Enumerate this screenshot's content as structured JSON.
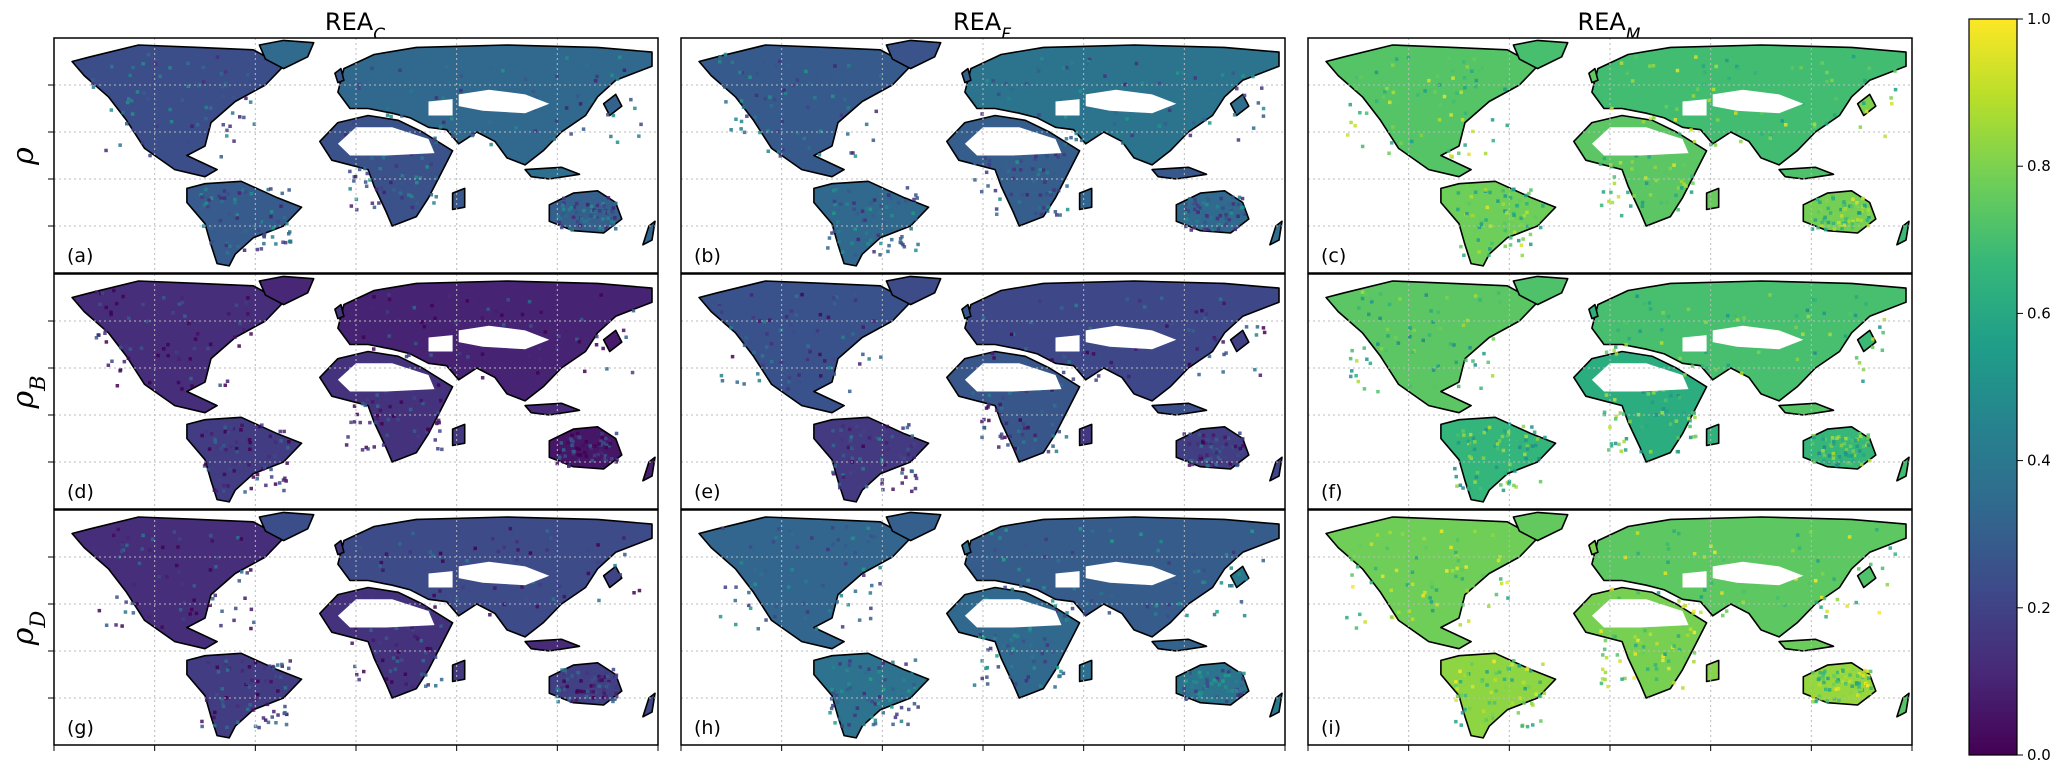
{
  "chart_data": {
    "type": "heatmap",
    "title": "",
    "columns": [
      {
        "main": "REA",
        "sub": "C"
      },
      {
        "main": "REA",
        "sub": "F"
      },
      {
        "main": "REA",
        "sub": "M"
      }
    ],
    "rows": [
      {
        "main": "ρ",
        "sub": ""
      },
      {
        "main": "ρ",
        "sub": "B"
      },
      {
        "main": "ρ",
        "sub": "D"
      }
    ],
    "panels": [
      {
        "label": "(a)",
        "row": 0,
        "col": 0,
        "level": 0.3
      },
      {
        "label": "(b)",
        "row": 0,
        "col": 1,
        "level": 0.32
      },
      {
        "label": "(c)",
        "row": 0,
        "col": 2,
        "level": 0.74
      },
      {
        "label": "(d)",
        "row": 1,
        "col": 0,
        "level": 0.12
      },
      {
        "label": "(e)",
        "row": 1,
        "col": 1,
        "level": 0.22
      },
      {
        "label": "(f)",
        "row": 1,
        "col": 2,
        "level": 0.68
      },
      {
        "label": "(g)",
        "row": 2,
        "col": 0,
        "level": 0.18
      },
      {
        "label": "(h)",
        "row": 2,
        "col": 1,
        "level": 0.35
      },
      {
        "label": "(i)",
        "row": 2,
        "col": 2,
        "level": 0.78
      }
    ],
    "colorbar": {
      "colormap": "viridis",
      "range": [
        0.0,
        1.0
      ],
      "ticks": [
        "0.0",
        "0.2",
        "0.4",
        "0.6",
        "0.8",
        "1.0"
      ]
    },
    "grid": true
  },
  "colors": {
    "viridis": [
      "#440154",
      "#482878",
      "#3e4989",
      "#31688e",
      "#26828e",
      "#1f9e89",
      "#35b779",
      "#6ece58",
      "#b5de2b",
      "#fde725"
    ],
    "gridline": "#bbbbbb",
    "coastline": "#000000"
  }
}
